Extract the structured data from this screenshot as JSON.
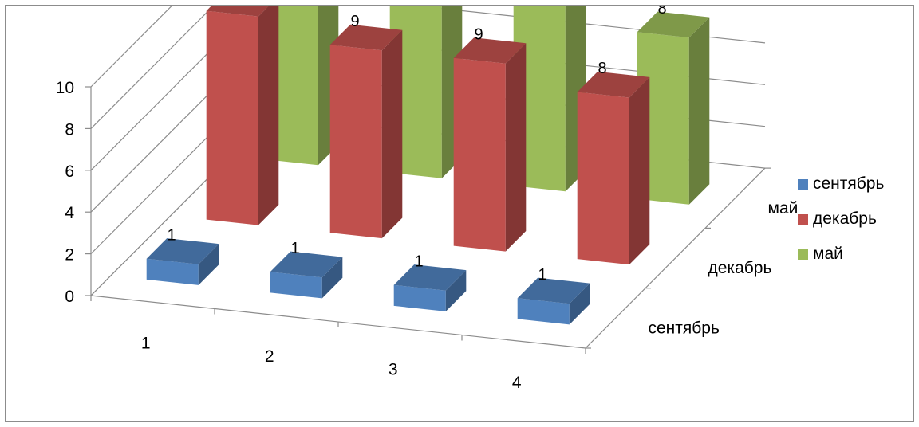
{
  "chart_data": {
    "type": "bar",
    "subtype": "3d-column",
    "title": "",
    "categories": [
      "1",
      "2",
      "3",
      "4"
    ],
    "series": [
      {
        "name": "сентябрь",
        "values": [
          1,
          1,
          1,
          1
        ],
        "color": "#4f81bd"
      },
      {
        "name": "декабрь",
        "values": [
          10,
          9,
          9,
          8
        ],
        "color": "#c0504d"
      },
      {
        "name": "май",
        "values": [
          10,
          10,
          10,
          8
        ],
        "color": "#9bbb59"
      }
    ],
    "ylim": [
      0,
      10
    ],
    "yticks": [
      "0",
      "2",
      "4",
      "6",
      "8",
      "10"
    ],
    "depth_labels": [
      "сентябрь",
      "декабрь",
      "май"
    ],
    "data_labels": true,
    "grid": true,
    "legend_position": "right"
  }
}
